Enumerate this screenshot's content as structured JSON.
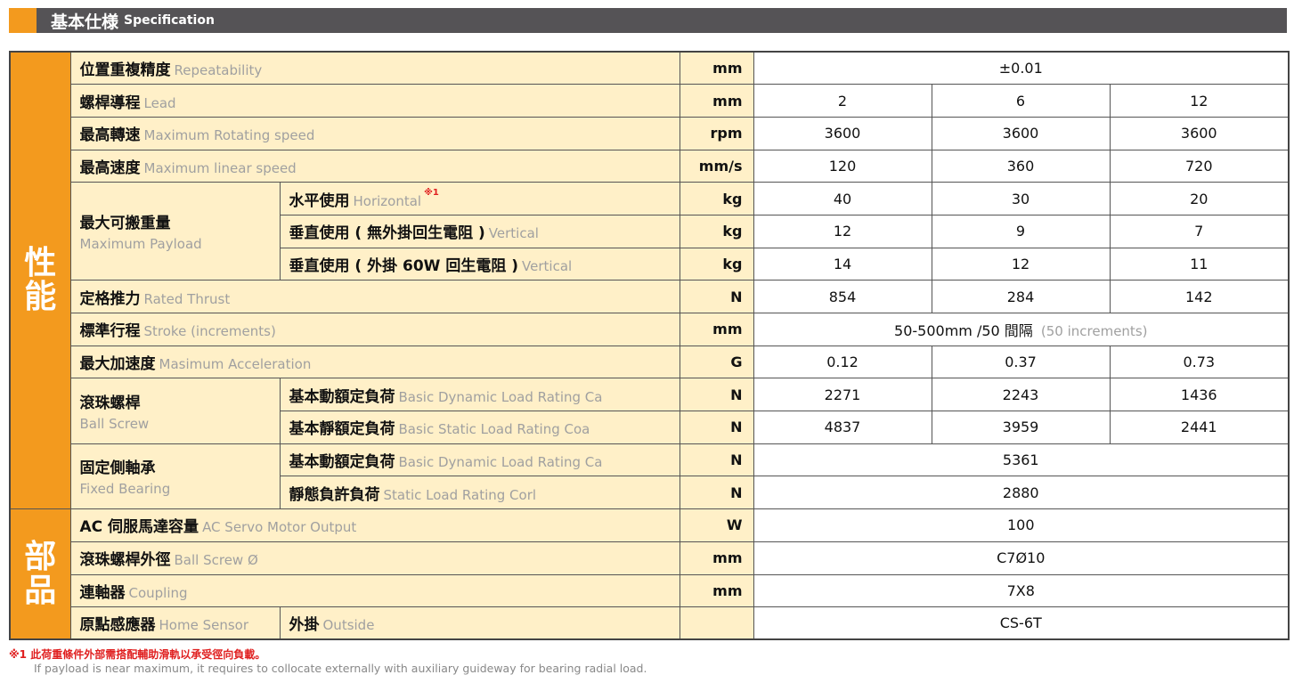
{
  "header": {
    "title_zh": "基本仕様",
    "title_en": "Specification"
  },
  "categories": {
    "performance": "性能",
    "parts": "部品"
  },
  "rows": [
    {
      "zh": "位置重複精度",
      "en": "Repeatability",
      "unit": "mm",
      "values": [
        "±0.01"
      ]
    },
    {
      "zh": "螺桿導程",
      "en": "Lead",
      "unit": "mm",
      "values": [
        "2",
        "6",
        "12"
      ]
    },
    {
      "zh": "最高轉速",
      "en": "Maximum Rotating speed",
      "unit": "rpm",
      "values": [
        "3600",
        "3600",
        "3600"
      ]
    },
    {
      "zh": "最高速度",
      "en": "Maximum linear speed",
      "unit": "mm/s",
      "values": [
        "120",
        "360",
        "720"
      ]
    },
    {
      "group_zh": "最大可搬重量",
      "group_en": "Maximum Payload",
      "zh": "水平使用",
      "en": "Horizontal",
      "mark": "※1",
      "unit": "kg",
      "values": [
        "40",
        "30",
        "20"
      ]
    },
    {
      "zh": "垂直使用 ( 無外掛回生電阻 )",
      "en": "Vertical",
      "unit": "kg",
      "values": [
        "12",
        "9",
        "7"
      ]
    },
    {
      "zh": "垂直使用 ( 外掛 60W 回生電阻 )",
      "en": "Vertical",
      "unit": "kg",
      "values": [
        "14",
        "12",
        "11"
      ]
    },
    {
      "zh": "定格推力",
      "en": "Rated Thrust",
      "unit": "N",
      "values": [
        "854",
        "284",
        "142"
      ]
    },
    {
      "zh": "標準行程",
      "en": "Stroke (increments)",
      "unit": "mm",
      "values": [
        "50-500mm /50 間隔"
      ],
      "value_note": "(50 increments)"
    },
    {
      "zh": "最大加速度",
      "en": "Masimum Acceleration",
      "unit": "G",
      "values": [
        "0.12",
        "0.37",
        "0.73"
      ]
    },
    {
      "group_zh": "滾珠螺桿",
      "group_en": "Ball Screw",
      "zh": "基本動額定負荷",
      "en": "Basic Dynamic Load Rating Ca",
      "unit": "N",
      "values": [
        "2271",
        "2243",
        "1436"
      ]
    },
    {
      "zh": "基本靜額定負荷",
      "en": "Basic Static Load Rating Coa",
      "unit": "N",
      "values": [
        "4837",
        "3959",
        "2441"
      ]
    },
    {
      "group_zh": "固定側軸承",
      "group_en": "Fixed Bearing",
      "zh": "基本動額定負荷",
      "en": "Basic Dynamic Load Rating Ca",
      "unit": "N",
      "values": [
        "5361"
      ]
    },
    {
      "zh": "靜態負許負荷",
      "en": "Static Load Rating Corl",
      "unit": "N",
      "values": [
        "2880"
      ]
    },
    {
      "zh": "AC 伺服馬達容量",
      "en": "AC Servo Motor Output",
      "unit": "W",
      "values": [
        "100"
      ]
    },
    {
      "zh": "滾珠螺桿外徑",
      "en": "Ball Screw Ø",
      "unit": "mm",
      "values": [
        "C7Ø10"
      ]
    },
    {
      "zh": "連軸器",
      "en": "Coupling",
      "unit": "mm",
      "values": [
        "7X8"
      ]
    },
    {
      "group_zh": "原點感應器",
      "group_en": "Home Sensor",
      "zh": "外掛",
      "en": "Outside",
      "unit": "",
      "values": [
        "CS-6T"
      ]
    }
  ],
  "footnote": {
    "zh": "※1 此荷重條件外部需搭配輔助滑軌以承受徑向負載。",
    "en": "If payload is near maximum, it requires to collocate externally with auxiliary guideway for bearing radial load."
  },
  "colors": {
    "accent": "#f39a1e",
    "label_bg": "#fff0c8",
    "header_bg": "#555356",
    "note": "#e02020"
  }
}
